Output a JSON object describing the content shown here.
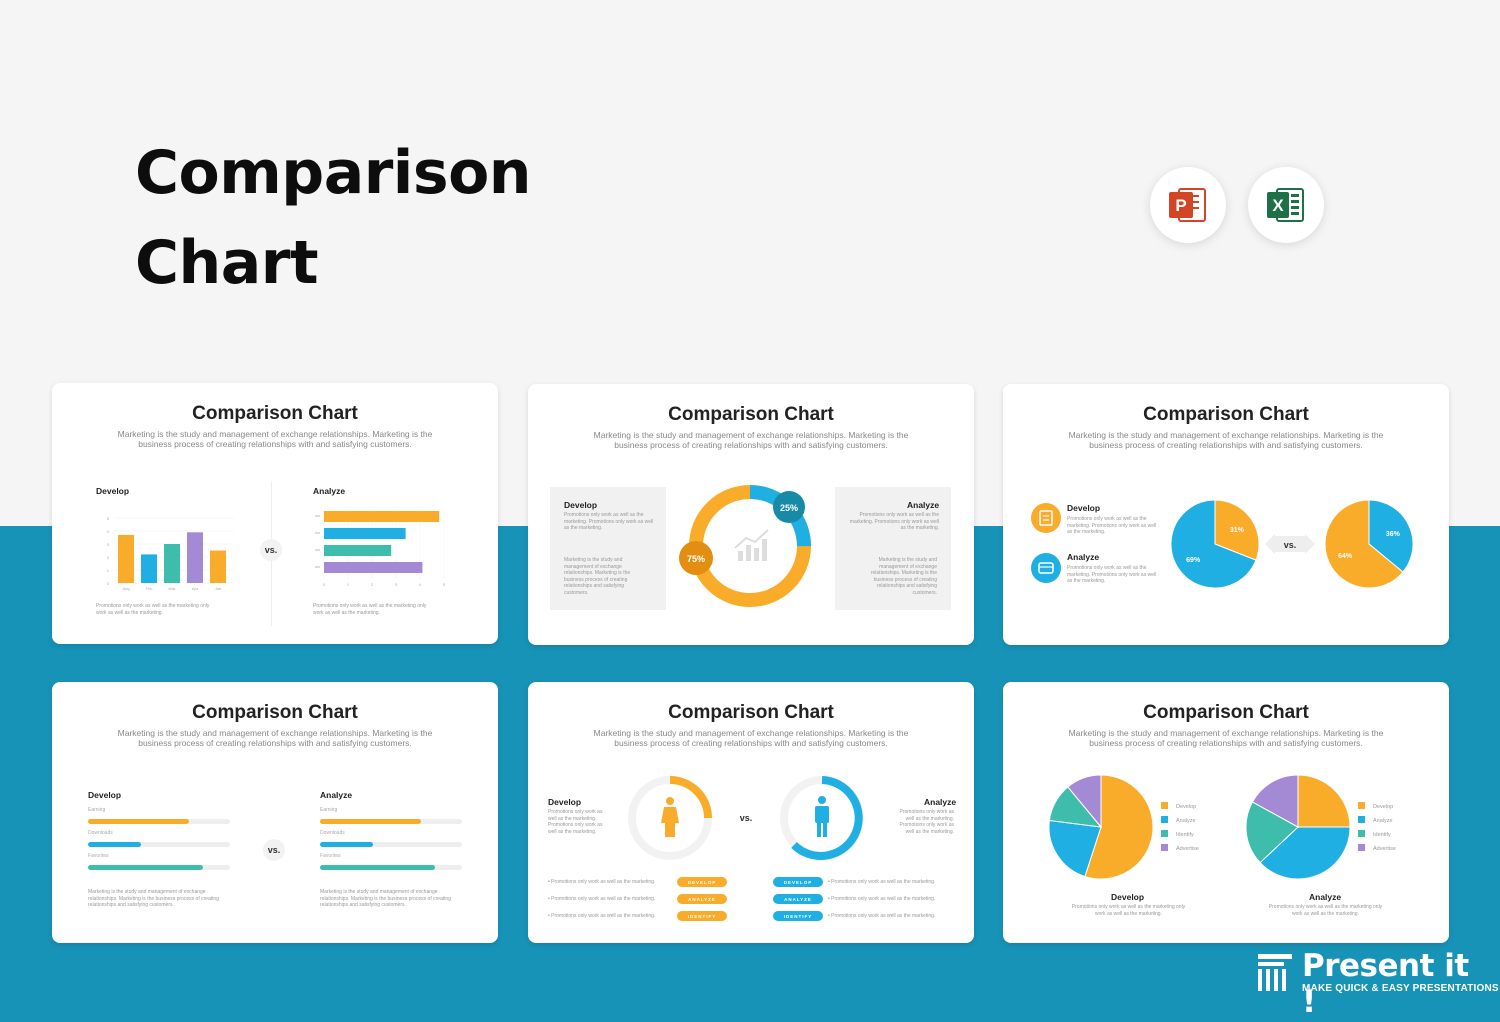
{
  "hero": {
    "title": "Comparison Chart"
  },
  "apps": [
    {
      "name": "powerpoint-icon",
      "letter": "P",
      "color": "#d24625"
    },
    {
      "name": "excel-icon",
      "letter": "X",
      "color": "#1e7145"
    }
  ],
  "colors": {
    "orange": "#f9ac2a",
    "blue": "#20afe2",
    "teal": "#3fbdac",
    "purple": "#a48ad4",
    "band": "#1793b8"
  },
  "slide_title": "Comparison Chart",
  "slide_subtitle": "Marketing is the study and management of exchange relationships. Marketing is the business process of creating relationships with and satisfying customers.",
  "vs": "vs.",
  "develop": "Develop",
  "analyze": "Analyze",
  "promo_short": "Promotions only work as well as the marketing only work as well as the marketing.",
  "promo_long": "Promotions only work as well as the marketing. Promotions only work as well as the marketing.",
  "marketing_text": "Marketing is the study and management of exchange relationships. Marketing is the business process of creating relationships and satisfying customers.",
  "bullet_text": "Promotions only work as well as the marketing.",
  "legend": [
    "Develop",
    "Analyze",
    "Identify",
    "Advertise"
  ],
  "pills": [
    "DEVELOP",
    "ANALYZE",
    "IDENTIFY"
  ],
  "bar_labels": [
    "Earning",
    "Downloads",
    "Favorites"
  ],
  "percent": {
    "p25": "25%",
    "p75": "75%",
    "p31": "31%",
    "p69": "69%",
    "p36": "36%",
    "p64": "64%"
  },
  "brand": {
    "name": "Present it !",
    "tagline": "MAKE QUICK & EASY PRESENTATIONS"
  },
  "chart_data": [
    {
      "type": "bar",
      "title": "Develop",
      "categories": [
        "Aug",
        "Feb",
        "Mar",
        "Apr",
        "Jan"
      ],
      "values": [
        3.7,
        2.2,
        3.0,
        3.9,
        2.5
      ],
      "ylim": [
        0,
        5
      ]
    },
    {
      "type": "bar",
      "title": "Analyze",
      "orientation": "horizontal",
      "values": [
        4.8,
        3.4,
        2.8,
        4.1
      ],
      "xlim": [
        0,
        5
      ]
    },
    {
      "type": "pie",
      "title": "Develop vs Analyze",
      "values": [
        25,
        75
      ]
    },
    {
      "type": "pie",
      "values": [
        31,
        69
      ]
    },
    {
      "type": "pie",
      "values": [
        36,
        64
      ]
    },
    {
      "type": "bar",
      "title": "Develop",
      "categories": [
        "Earning",
        "Downloads",
        "Favorites"
      ],
      "values": [
        0.71,
        0.37,
        0.81
      ]
    },
    {
      "type": "bar",
      "title": "Analyze",
      "categories": [
        "Earning",
        "Downloads",
        "Favorites"
      ],
      "values": [
        0.71,
        0.37,
        0.81
      ]
    },
    {
      "type": "pie",
      "title": "Develop",
      "categories": [
        "Develop",
        "Analyze",
        "Identify",
        "Advertise"
      ],
      "values": [
        55,
        22,
        12,
        11
      ]
    },
    {
      "type": "pie",
      "title": "Analyze",
      "categories": [
        "Develop",
        "Analyze",
        "Identify",
        "Advertise"
      ],
      "values": [
        25,
        38,
        20,
        17
      ]
    }
  ]
}
